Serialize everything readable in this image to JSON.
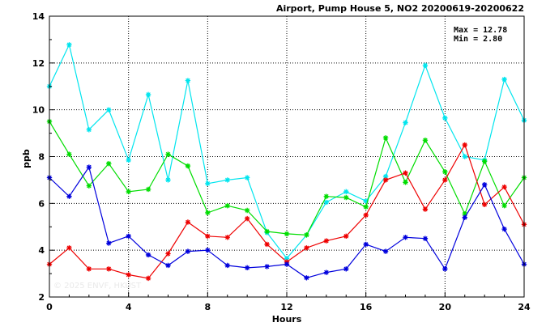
{
  "chart_data": {
    "type": "line",
    "title": "Airport, Pump House 5, NO2 20200619-20200622",
    "xlabel": "Hours",
    "ylabel": "ppb",
    "xlim": [
      0,
      24
    ],
    "ylim": [
      2,
      14
    ],
    "xticks": [
      0,
      4,
      8,
      12,
      16,
      20,
      24
    ],
    "yticks": [
      2,
      4,
      6,
      8,
      10,
      12,
      14
    ],
    "grid": true,
    "legend": "none",
    "stats": {
      "max_label": "Max = 12.78",
      "min_label": "Min =  2.80"
    },
    "watermark": "© 2025  ENVF, HKUST",
    "x": [
      0,
      1,
      2,
      3,
      4,
      5,
      6,
      7,
      8,
      9,
      10,
      11,
      12,
      13,
      14,
      15,
      16,
      17,
      18,
      19,
      20,
      21,
      22,
      23,
      24
    ],
    "series": [
      {
        "color": "#00e5ee",
        "values": [
          11.0,
          12.78,
          9.15,
          10.0,
          7.85,
          10.65,
          7.0,
          11.25,
          6.85,
          7.0,
          7.1,
          4.75,
          3.65,
          4.65,
          6.05,
          6.5,
          6.1,
          7.15,
          9.45,
          11.9,
          9.65,
          8.0,
          7.85,
          11.3,
          9.55
        ]
      },
      {
        "color": "#00dd00",
        "values": [
          9.5,
          8.1,
          6.75,
          7.7,
          6.5,
          6.6,
          8.1,
          7.6,
          5.6,
          5.9,
          5.7,
          4.8,
          4.7,
          4.65,
          6.3,
          6.25,
          5.85,
          8.8,
          6.9,
          8.7,
          7.35,
          5.55,
          7.8,
          5.9,
          7.1
        ]
      },
      {
        "color": "#ee0000",
        "values": [
          3.4,
          4.1,
          3.2,
          3.2,
          2.95,
          2.8,
          3.85,
          5.2,
          4.6,
          4.55,
          5.35,
          4.25,
          3.5,
          4.1,
          4.4,
          4.6,
          5.5,
          7.0,
          7.3,
          5.75,
          7.0,
          8.5,
          5.95,
          6.7,
          5.1
        ]
      },
      {
        "color": "#0000dd",
        "values": [
          7.1,
          6.3,
          7.55,
          4.3,
          4.6,
          3.8,
          3.35,
          3.95,
          4.0,
          3.35,
          3.25,
          3.3,
          3.4,
          2.82,
          3.05,
          3.2,
          4.25,
          3.95,
          4.55,
          4.5,
          3.2,
          5.4,
          6.8,
          4.9,
          3.4
        ]
      }
    ]
  }
}
